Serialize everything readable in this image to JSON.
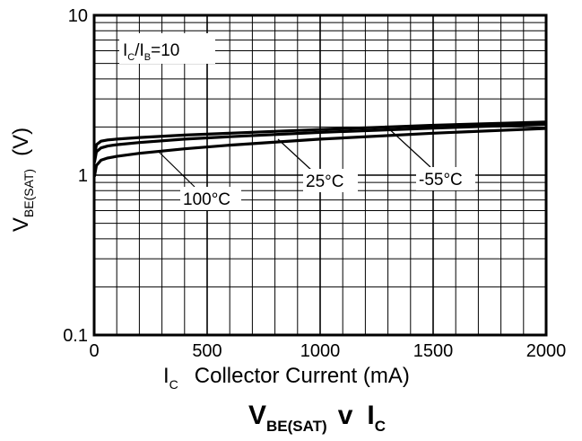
{
  "chart_data": {
    "type": "line",
    "x_scale": "linear",
    "y_scale": "log",
    "xlim": [
      0,
      2000
    ],
    "ylim": [
      0.1,
      10
    ],
    "x_ticks": [
      "0",
      "500",
      "1000",
      "1500",
      "2000"
    ],
    "y_ticks": [
      "0.1",
      "1",
      "10"
    ],
    "grid": true,
    "xlabel": {
      "symbol": "I",
      "subscript": "C",
      "text": "Collector Current (mA)"
    },
    "ylabel": {
      "symbol": "V",
      "subscript": "BE(SAT)",
      "unit": "(V)"
    },
    "caption": {
      "v_symbol": "V",
      "v_subscript": "BE(SAT)",
      "middle": "v",
      "i_symbol": "I",
      "i_subscript": "C"
    },
    "condition": {
      "a": "I",
      "a_sub": "C",
      "slash": "/",
      "b": "I",
      "b_sub": "B",
      "rest": "=10"
    },
    "series": [
      {
        "name": "-55°C",
        "x": [
          1,
          10,
          30,
          60,
          100,
          200,
          400,
          600,
          1000,
          1500,
          2000
        ],
        "y": [
          1.3,
          1.55,
          1.63,
          1.66,
          1.68,
          1.72,
          1.78,
          1.83,
          1.93,
          2.05,
          2.15
        ]
      },
      {
        "name": "25°C",
        "x": [
          1,
          10,
          30,
          60,
          100,
          200,
          400,
          600,
          1000,
          1500,
          2000
        ],
        "y": [
          1.2,
          1.4,
          1.48,
          1.52,
          1.55,
          1.6,
          1.68,
          1.74,
          1.85,
          1.97,
          2.08
        ]
      },
      {
        "name": "100°C",
        "x": [
          1,
          10,
          30,
          60,
          100,
          200,
          400,
          600,
          1000,
          1500,
          2000
        ],
        "y": [
          0.98,
          1.15,
          1.24,
          1.28,
          1.31,
          1.37,
          1.46,
          1.54,
          1.68,
          1.83,
          1.96
        ]
      }
    ]
  }
}
